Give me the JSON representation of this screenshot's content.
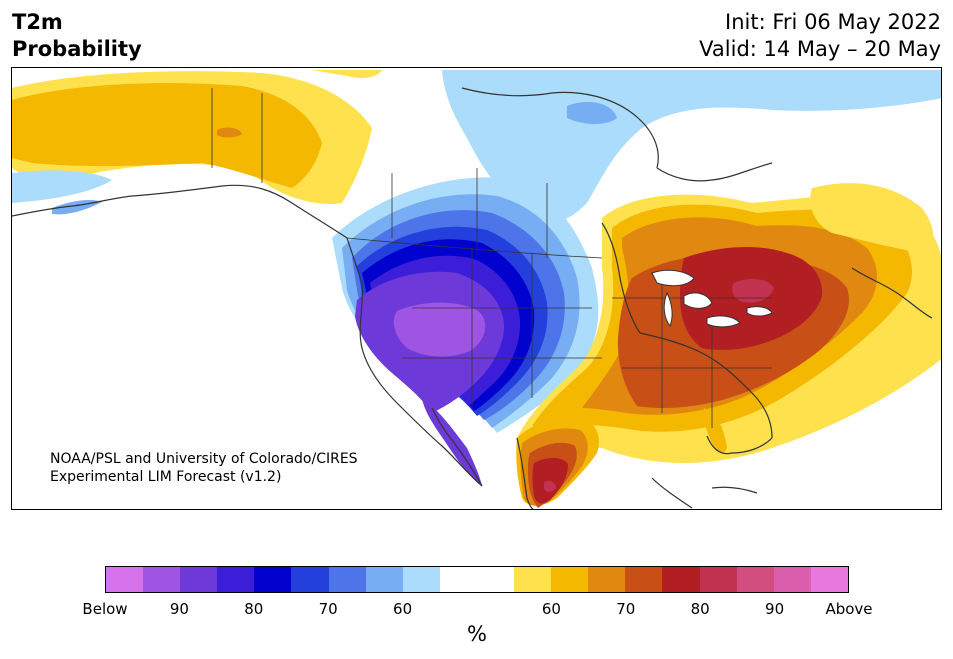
{
  "header": {
    "title_line1": "T2m",
    "title_line2": "Probability",
    "init_line": "Init: Fri 06 May 2022",
    "valid_line": "Valid: 14 May – 20 May"
  },
  "map": {
    "credit_line1": "NOAA/PSL and University of Colorado/CIRES",
    "credit_line2": "Experimental LIM Forecast (v1.2)"
  },
  "colorbar": {
    "unit": "%",
    "tick_labels": [
      "Below",
      "90",
      "80",
      "70",
      "60",
      "60",
      "70",
      "80",
      "90",
      "Above"
    ],
    "colors": [
      "#d672ea",
      "#9e55e3",
      "#6e39d9",
      "#3c1ed8",
      "#0202cf",
      "#2340dc",
      "#4d74e9",
      "#77adf2",
      "#acdcfb",
      "#ffffff",
      "#ffffff",
      "#fee14d",
      "#f4b800",
      "#e08810",
      "#c85016",
      "#b21f22",
      "#c13350",
      "#d14e7f",
      "#dc5fad",
      "#e878de"
    ]
  },
  "palette": {
    "cold_light": "#acdcfb",
    "cold_mid": "#77adf2",
    "cold_blue": "#2340dc",
    "cold_deep": "#0202cf",
    "cold_indigo": "#3c1ed8",
    "cold_violet": "#6e39d9",
    "cold_lilac": "#9e55e3",
    "warm_yellow": "#fee14d",
    "warm_gold": "#f4b800",
    "warm_orange": "#e08810",
    "warm_rust": "#c85016",
    "warm_red": "#b21f22",
    "warm_rose": "#c13350",
    "coast": "#333333"
  }
}
